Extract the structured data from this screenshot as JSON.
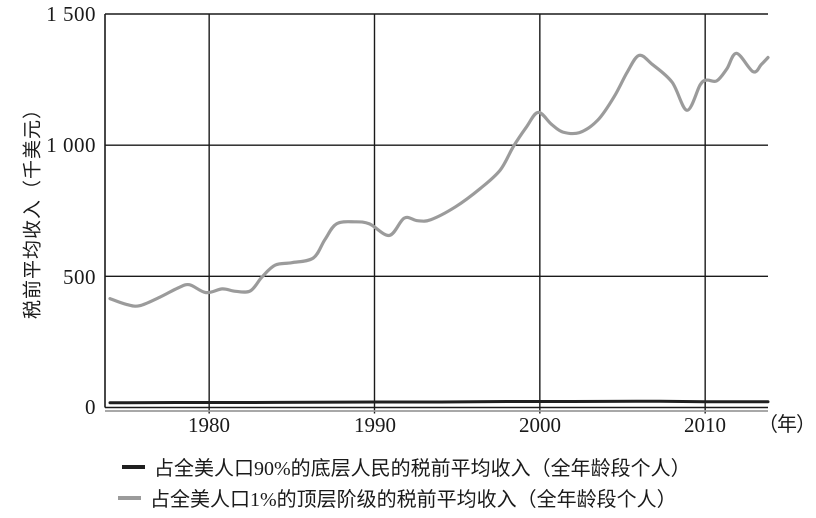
{
  "figure": {
    "kind": "line-chart-book-figure",
    "background": "#ffffff",
    "axis_color": "#1a1a1a"
  },
  "chart_data": {
    "type": "line",
    "title": "",
    "xlabel": "",
    "x_unit": "（年）",
    "ylabel": "税前平均收入（千美元）",
    "xlim": [
      1973.7,
      2013.8
    ],
    "ylim": [
      0,
      1500
    ],
    "x_ticks": [
      1980,
      1990,
      2000,
      2010
    ],
    "x_tick_labels": [
      "1980",
      "1990",
      "2000",
      "2010"
    ],
    "y_ticks": [
      0,
      500,
      1000,
      1500
    ],
    "y_tick_labels": [
      "0",
      "500",
      "1 000",
      "1 500"
    ],
    "grid": true,
    "legend_position": "bottom-left",
    "series": [
      {
        "name": "占全美人口90%的底层人民的税前平均收入（全年龄段个人）",
        "color": "#1f1f1f",
        "width": 3,
        "points": [
          [
            1974,
            18
          ],
          [
            1978,
            19
          ],
          [
            1982,
            19
          ],
          [
            1986,
            20
          ],
          [
            1990,
            21
          ],
          [
            1994,
            21
          ],
          [
            1998,
            23
          ],
          [
            2002,
            23
          ],
          [
            2006,
            24
          ],
          [
            2010,
            22
          ],
          [
            2013.8,
            22
          ]
        ]
      },
      {
        "name": "占全美人口1%的顶层阶级的税前平均收入（全年龄段个人）",
        "color": "#9b9b9b",
        "width": 3.2,
        "points": [
          [
            1974.0,
            415
          ],
          [
            1975.0,
            393
          ],
          [
            1975.8,
            388
          ],
          [
            1977.0,
            420
          ],
          [
            1978.1,
            455
          ],
          [
            1978.8,
            468
          ],
          [
            1979.8,
            438
          ],
          [
            1980.8,
            452
          ],
          [
            1981.6,
            443
          ],
          [
            1982.5,
            445
          ],
          [
            1983.2,
            498
          ],
          [
            1984.0,
            543
          ],
          [
            1985.0,
            552
          ],
          [
            1986.3,
            570
          ],
          [
            1987.0,
            640
          ],
          [
            1987.7,
            700
          ],
          [
            1988.8,
            708
          ],
          [
            1989.7,
            700
          ],
          [
            1990.9,
            656
          ],
          [
            1991.8,
            722
          ],
          [
            1992.6,
            712
          ],
          [
            1993.4,
            716
          ],
          [
            1994.9,
            765
          ],
          [
            1996.4,
            835
          ],
          [
            1997.6,
            905
          ],
          [
            1998.4,
            995
          ],
          [
            1999.2,
            1070
          ],
          [
            1999.9,
            1125
          ],
          [
            2000.7,
            1080
          ],
          [
            2001.4,
            1050
          ],
          [
            2002.4,
            1048
          ],
          [
            2003.5,
            1095
          ],
          [
            2004.5,
            1185
          ],
          [
            2005.3,
            1280
          ],
          [
            2006.0,
            1342
          ],
          [
            2006.8,
            1308
          ],
          [
            2008.0,
            1240
          ],
          [
            2008.9,
            1133
          ],
          [
            2009.7,
            1230
          ],
          [
            2010.1,
            1248
          ],
          [
            2010.7,
            1245
          ],
          [
            2011.3,
            1290
          ],
          [
            2011.9,
            1350
          ],
          [
            2012.9,
            1280
          ],
          [
            2013.4,
            1308
          ],
          [
            2013.8,
            1334
          ]
        ]
      }
    ]
  }
}
